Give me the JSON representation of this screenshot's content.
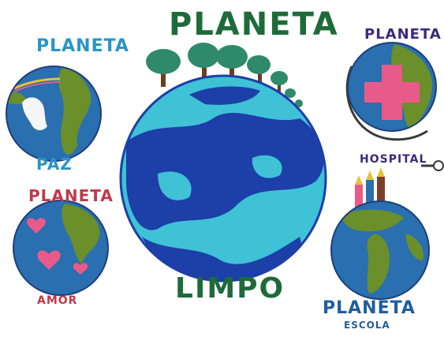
{
  "title": "PLANETA",
  "center_caption": "LIMPO",
  "planets": {
    "paz": {
      "title": "PLANETA",
      "caption": "PAZ"
    },
    "amor": {
      "title": "PLANETA",
      "caption": "AMOR"
    },
    "hospital": {
      "title": "PLANETA",
      "caption": "HOSPITAL"
    },
    "escola": {
      "title": "PLANETA",
      "caption": "ESCOLA"
    }
  },
  "colors": {
    "ocean": "#2a6fb0",
    "ocean_light": "#3fc1d6",
    "ocean_dark": "#1d3fa8",
    "land": "#6b8f2a",
    "tree": "#2e8a6a",
    "trunk": "#6b3f1e",
    "heart": "#e85a8a",
    "cross": "#e85a8a"
  }
}
